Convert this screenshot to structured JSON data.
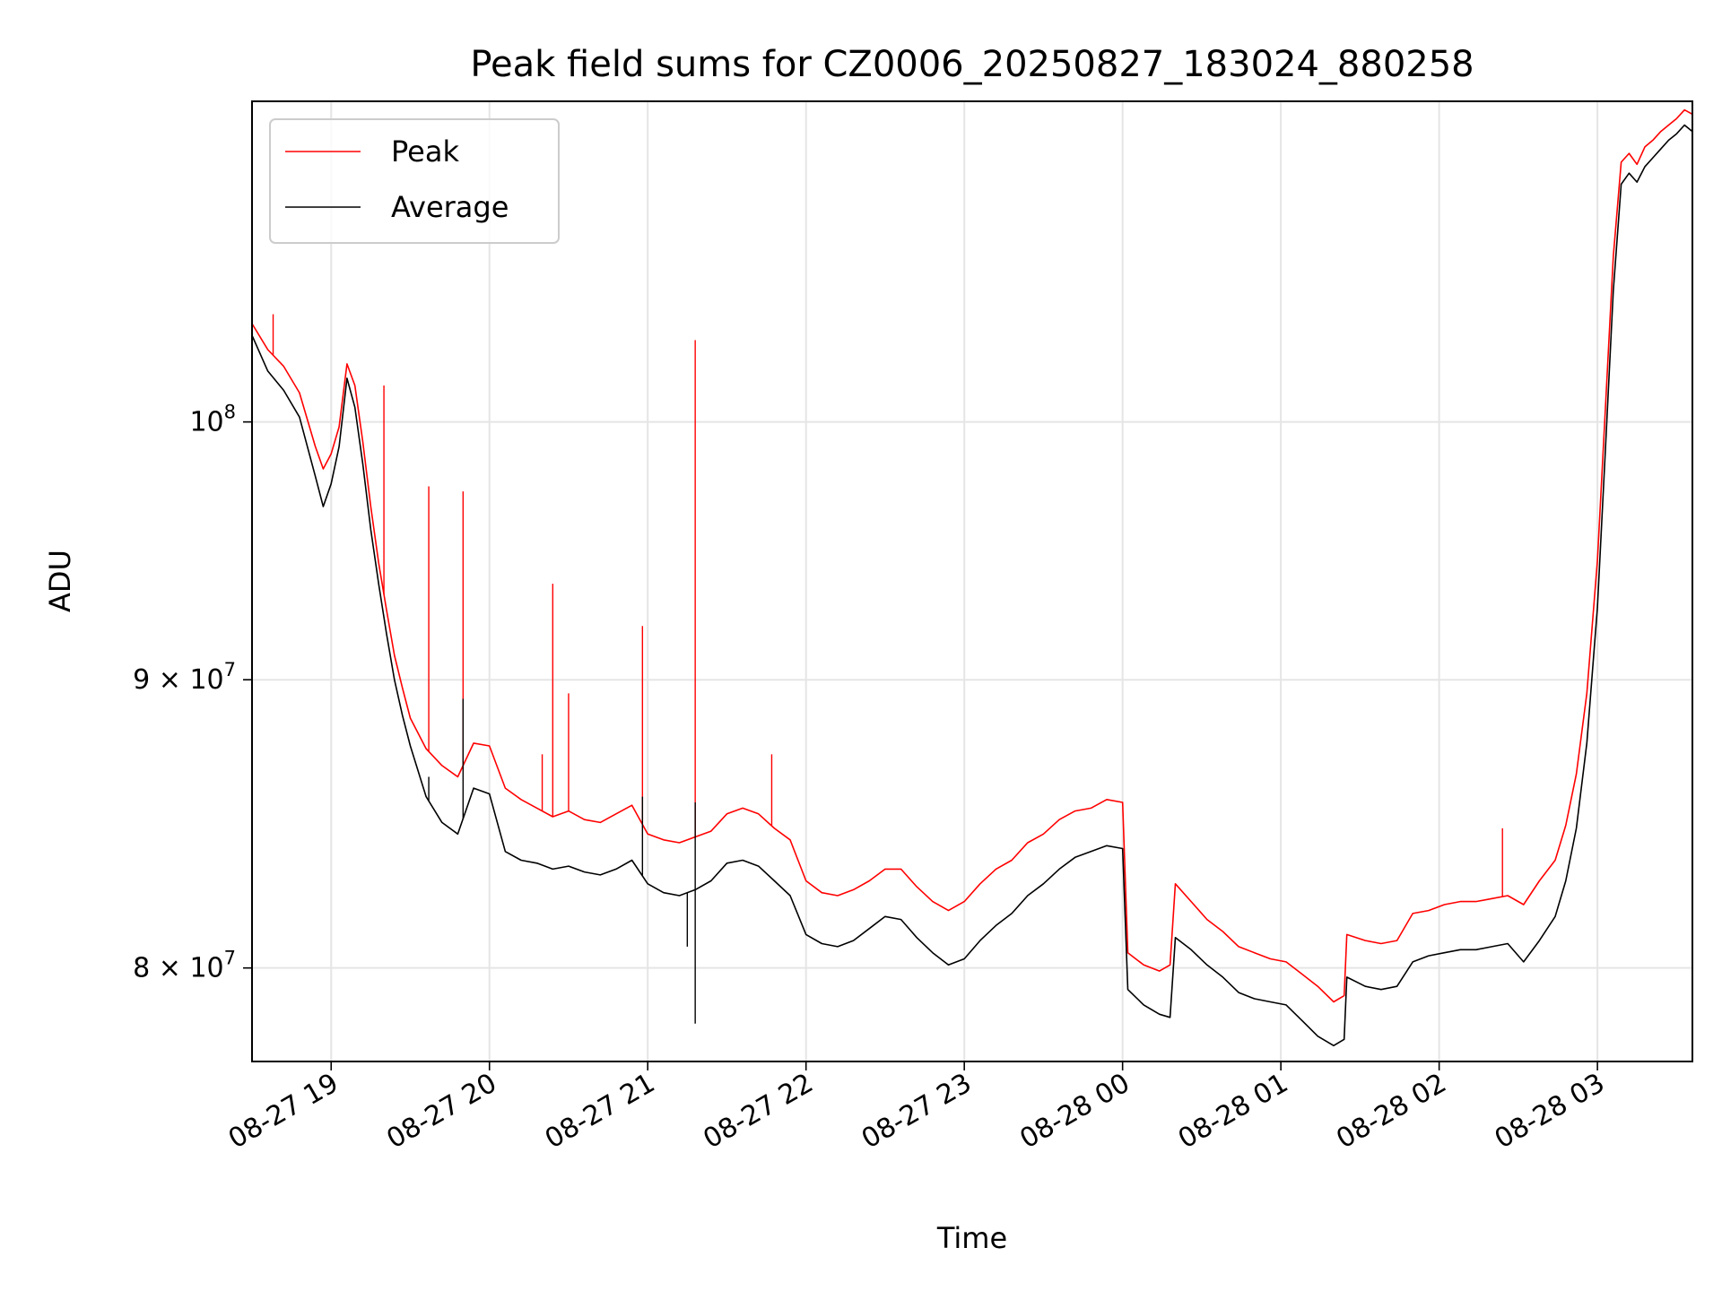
{
  "chart_data": {
    "type": "line",
    "title": "Peak field sums for CZ0006_20250827_183024_880258",
    "xlabel": "Time",
    "ylabel": "ADU",
    "y_scale": "log",
    "xlim": [
      "2025-08-27 18:30",
      "2025-08-28 03:36"
    ],
    "ylim": [
      77000000,
      114000000
    ],
    "x_ticks": [
      {
        "value": "2025-08-27 19:00",
        "label": "08-27 19"
      },
      {
        "value": "2025-08-27 20:00",
        "label": "08-27 20"
      },
      {
        "value": "2025-08-27 21:00",
        "label": "08-27 21"
      },
      {
        "value": "2025-08-27 22:00",
        "label": "08-27 22"
      },
      {
        "value": "2025-08-27 23:00",
        "label": "08-27 23"
      },
      {
        "value": "2025-08-28 00:00",
        "label": "08-28 00"
      },
      {
        "value": "2025-08-28 01:00",
        "label": "08-28 01"
      },
      {
        "value": "2025-08-28 02:00",
        "label": "08-28 02"
      },
      {
        "value": "2025-08-28 03:00",
        "label": "08-28 03"
      }
    ],
    "y_ticks": [
      {
        "value": 80000000,
        "base": "8",
        "exp": "7"
      },
      {
        "value": 90000000,
        "base": "9",
        "exp": "7"
      },
      {
        "value": 100000000,
        "base": "",
        "exp": "8"
      }
    ],
    "grid": true,
    "legend_position": "top-left",
    "series": [
      {
        "name": "Peak",
        "color": "#ff0000",
        "points": [
          [
            "2025-08-27 18:30",
            104100000
          ],
          [
            "2025-08-27 18:36",
            103000000
          ],
          [
            "2025-08-27 18:42",
            102300000
          ],
          [
            "2025-08-27 18:48",
            101200000
          ],
          [
            "2025-08-27 18:54",
            99000000
          ],
          [
            "2025-08-27 18:57",
            98100000
          ],
          [
            "2025-08-27 19:00",
            98700000
          ],
          [
            "2025-08-27 19:03",
            99800000
          ],
          [
            "2025-08-27 19:06",
            102400000
          ],
          [
            "2025-08-27 19:09",
            101500000
          ],
          [
            "2025-08-27 19:12",
            99200000
          ],
          [
            "2025-08-27 19:15",
            96600000
          ],
          [
            "2025-08-27 19:18",
            94400000
          ],
          [
            "2025-08-27 19:21",
            92600000
          ],
          [
            "2025-08-27 19:24",
            90900000
          ],
          [
            "2025-08-27 19:27",
            89700000
          ],
          [
            "2025-08-27 19:30",
            88600000
          ],
          [
            "2025-08-27 19:36",
            87500000
          ],
          [
            "2025-08-27 19:42",
            86900000
          ],
          [
            "2025-08-27 19:48",
            86500000
          ],
          [
            "2025-08-27 19:54",
            87700000
          ],
          [
            "2025-08-27 20:00",
            87600000
          ],
          [
            "2025-08-27 20:06",
            86100000
          ],
          [
            "2025-08-27 20:12",
            85700000
          ],
          [
            "2025-08-27 20:18",
            85400000
          ],
          [
            "2025-08-27 20:24",
            85100000
          ],
          [
            "2025-08-27 20:30",
            85300000
          ],
          [
            "2025-08-27 20:36",
            85000000
          ],
          [
            "2025-08-27 20:42",
            84900000
          ],
          [
            "2025-08-27 20:48",
            85200000
          ],
          [
            "2025-08-27 20:54",
            85500000
          ],
          [
            "2025-08-27 21:00",
            84500000
          ],
          [
            "2025-08-27 21:06",
            84300000
          ],
          [
            "2025-08-27 21:12",
            84200000
          ],
          [
            "2025-08-27 21:18",
            84400000
          ],
          [
            "2025-08-27 21:24",
            84600000
          ],
          [
            "2025-08-27 21:30",
            85200000
          ],
          [
            "2025-08-27 21:36",
            85400000
          ],
          [
            "2025-08-27 21:42",
            85200000
          ],
          [
            "2025-08-27 21:48",
            84700000
          ],
          [
            "2025-08-27 21:54",
            84300000
          ],
          [
            "2025-08-27 22:00",
            82900000
          ],
          [
            "2025-08-27 22:06",
            82500000
          ],
          [
            "2025-08-27 22:12",
            82400000
          ],
          [
            "2025-08-27 22:18",
            82600000
          ],
          [
            "2025-08-27 22:24",
            82900000
          ],
          [
            "2025-08-27 22:30",
            83300000
          ],
          [
            "2025-08-27 22:36",
            83300000
          ],
          [
            "2025-08-27 22:42",
            82700000
          ],
          [
            "2025-08-27 22:48",
            82200000
          ],
          [
            "2025-08-27 22:54",
            81900000
          ],
          [
            "2025-08-27 23:00",
            82200000
          ],
          [
            "2025-08-27 23:06",
            82800000
          ],
          [
            "2025-08-27 23:12",
            83300000
          ],
          [
            "2025-08-27 23:18",
            83600000
          ],
          [
            "2025-08-27 23:24",
            84200000
          ],
          [
            "2025-08-27 23:30",
            84500000
          ],
          [
            "2025-08-27 23:36",
            85000000
          ],
          [
            "2025-08-27 23:42",
            85300000
          ],
          [
            "2025-08-27 23:48",
            85400000
          ],
          [
            "2025-08-27 23:54",
            85700000
          ],
          [
            "2025-08-28 00:00",
            85600000
          ],
          [
            "2025-08-28 00:02",
            80500000
          ],
          [
            "2025-08-28 00:08",
            80100000
          ],
          [
            "2025-08-28 00:14",
            79900000
          ],
          [
            "2025-08-28 00:18",
            80100000
          ],
          [
            "2025-08-28 00:20",
            82800000
          ],
          [
            "2025-08-28 00:26",
            82200000
          ],
          [
            "2025-08-28 00:32",
            81600000
          ],
          [
            "2025-08-28 00:38",
            81200000
          ],
          [
            "2025-08-28 00:44",
            80700000
          ],
          [
            "2025-08-28 00:50",
            80500000
          ],
          [
            "2025-08-28 00:56",
            80300000
          ],
          [
            "2025-08-28 01:02",
            80200000
          ],
          [
            "2025-08-28 01:08",
            79800000
          ],
          [
            "2025-08-28 01:14",
            79400000
          ],
          [
            "2025-08-28 01:20",
            78900000
          ],
          [
            "2025-08-28 01:24",
            79100000
          ],
          [
            "2025-08-28 01:25",
            81100000
          ],
          [
            "2025-08-28 01:32",
            80900000
          ],
          [
            "2025-08-28 01:38",
            80800000
          ],
          [
            "2025-08-28 01:44",
            80900000
          ],
          [
            "2025-08-28 01:50",
            81800000
          ],
          [
            "2025-08-28 01:56",
            81900000
          ],
          [
            "2025-08-28 02:02",
            82100000
          ],
          [
            "2025-08-28 02:08",
            82200000
          ],
          [
            "2025-08-28 02:14",
            82200000
          ],
          [
            "2025-08-28 02:20",
            82300000
          ],
          [
            "2025-08-28 02:26",
            82400000
          ],
          [
            "2025-08-28 02:32",
            82100000
          ],
          [
            "2025-08-28 02:38",
            82900000
          ],
          [
            "2025-08-28 02:44",
            83600000
          ],
          [
            "2025-08-28 02:48",
            84800000
          ],
          [
            "2025-08-28 02:52",
            86600000
          ],
          [
            "2025-08-28 02:56",
            89500000
          ],
          [
            "2025-08-28 03:00",
            94500000
          ],
          [
            "2025-08-28 03:03",
            100500000
          ],
          [
            "2025-08-28 03:06",
            107000000
          ],
          [
            "2025-08-28 03:09",
            111200000
          ],
          [
            "2025-08-28 03:12",
            111600000
          ],
          [
            "2025-08-28 03:15",
            111100000
          ],
          [
            "2025-08-28 03:18",
            111900000
          ],
          [
            "2025-08-28 03:21",
            112200000
          ],
          [
            "2025-08-28 03:24",
            112600000
          ],
          [
            "2025-08-28 03:27",
            112900000
          ],
          [
            "2025-08-28 03:30",
            113200000
          ],
          [
            "2025-08-28 03:33",
            113600000
          ],
          [
            "2025-08-28 03:36",
            113400000
          ]
        ],
        "spikes": [
          [
            "2025-08-27 18:38",
            104500000
          ],
          [
            "2025-08-27 19:20",
            101500000
          ],
          [
            "2025-08-27 19:37",
            97400000
          ],
          [
            "2025-08-27 19:50",
            97200000
          ],
          [
            "2025-08-27 20:20",
            87300000
          ],
          [
            "2025-08-27 20:24",
            93600000
          ],
          [
            "2025-08-27 20:30",
            89500000
          ],
          [
            "2025-08-27 20:58",
            92000000
          ],
          [
            "2025-08-27 21:18",
            103400000
          ],
          [
            "2025-08-27 21:47",
            87300000
          ],
          [
            "2025-08-28 02:24",
            84700000
          ]
        ]
      },
      {
        "name": "Average",
        "color": "#000000",
        "points": [
          [
            "2025-08-27 18:30",
            103600000
          ],
          [
            "2025-08-27 18:36",
            102100000
          ],
          [
            "2025-08-27 18:42",
            101300000
          ],
          [
            "2025-08-27 18:48",
            100200000
          ],
          [
            "2025-08-27 18:54",
            97800000
          ],
          [
            "2025-08-27 18:57",
            96600000
          ],
          [
            "2025-08-27 19:00",
            97500000
          ],
          [
            "2025-08-27 19:03",
            99000000
          ],
          [
            "2025-08-27 19:06",
            101800000
          ],
          [
            "2025-08-27 19:09",
            100600000
          ],
          [
            "2025-08-27 19:12",
            98300000
          ],
          [
            "2025-08-27 19:15",
            95700000
          ],
          [
            "2025-08-27 19:18",
            93600000
          ],
          [
            "2025-08-27 19:21",
            91700000
          ],
          [
            "2025-08-27 19:24",
            90000000
          ],
          [
            "2025-08-27 19:27",
            88700000
          ],
          [
            "2025-08-27 19:30",
            87600000
          ],
          [
            "2025-08-27 19:36",
            85800000
          ],
          [
            "2025-08-27 19:42",
            84900000
          ],
          [
            "2025-08-27 19:48",
            84500000
          ],
          [
            "2025-08-27 19:54",
            86100000
          ],
          [
            "2025-08-27 20:00",
            85900000
          ],
          [
            "2025-08-27 20:06",
            83900000
          ],
          [
            "2025-08-27 20:12",
            83600000
          ],
          [
            "2025-08-27 20:18",
            83500000
          ],
          [
            "2025-08-27 20:24",
            83300000
          ],
          [
            "2025-08-27 20:30",
            83400000
          ],
          [
            "2025-08-27 20:36",
            83200000
          ],
          [
            "2025-08-27 20:42",
            83100000
          ],
          [
            "2025-08-27 20:48",
            83300000
          ],
          [
            "2025-08-27 20:54",
            83600000
          ],
          [
            "2025-08-27 21:00",
            82800000
          ],
          [
            "2025-08-27 21:06",
            82500000
          ],
          [
            "2025-08-27 21:12",
            82400000
          ],
          [
            "2025-08-27 21:18",
            82600000
          ],
          [
            "2025-08-27 21:24",
            82900000
          ],
          [
            "2025-08-27 21:30",
            83500000
          ],
          [
            "2025-08-27 21:36",
            83600000
          ],
          [
            "2025-08-27 21:42",
            83400000
          ],
          [
            "2025-08-27 21:48",
            82900000
          ],
          [
            "2025-08-27 21:54",
            82400000
          ],
          [
            "2025-08-27 22:00",
            81100000
          ],
          [
            "2025-08-27 22:06",
            80800000
          ],
          [
            "2025-08-27 22:12",
            80700000
          ],
          [
            "2025-08-27 22:18",
            80900000
          ],
          [
            "2025-08-27 22:24",
            81300000
          ],
          [
            "2025-08-27 22:30",
            81700000
          ],
          [
            "2025-08-27 22:36",
            81600000
          ],
          [
            "2025-08-27 22:42",
            81000000
          ],
          [
            "2025-08-27 22:48",
            80500000
          ],
          [
            "2025-08-27 22:54",
            80100000
          ],
          [
            "2025-08-27 23:00",
            80300000
          ],
          [
            "2025-08-27 23:06",
            80900000
          ],
          [
            "2025-08-27 23:12",
            81400000
          ],
          [
            "2025-08-27 23:18",
            81800000
          ],
          [
            "2025-08-27 23:24",
            82400000
          ],
          [
            "2025-08-27 23:30",
            82800000
          ],
          [
            "2025-08-27 23:36",
            83300000
          ],
          [
            "2025-08-27 23:42",
            83700000
          ],
          [
            "2025-08-27 23:48",
            83900000
          ],
          [
            "2025-08-27 23:54",
            84100000
          ],
          [
            "2025-08-28 00:00",
            84000000
          ],
          [
            "2025-08-28 00:02",
            79300000
          ],
          [
            "2025-08-28 00:08",
            78800000
          ],
          [
            "2025-08-28 00:14",
            78500000
          ],
          [
            "2025-08-28 00:18",
            78400000
          ],
          [
            "2025-08-28 00:20",
            81000000
          ],
          [
            "2025-08-28 00:26",
            80600000
          ],
          [
            "2025-08-28 00:32",
            80100000
          ],
          [
            "2025-08-28 00:38",
            79700000
          ],
          [
            "2025-08-28 00:44",
            79200000
          ],
          [
            "2025-08-28 00:50",
            79000000
          ],
          [
            "2025-08-28 00:56",
            78900000
          ],
          [
            "2025-08-28 01:02",
            78800000
          ],
          [
            "2025-08-28 01:08",
            78300000
          ],
          [
            "2025-08-28 01:14",
            77800000
          ],
          [
            "2025-08-28 01:20",
            77500000
          ],
          [
            "2025-08-28 01:24",
            77700000
          ],
          [
            "2025-08-28 01:25",
            79700000
          ],
          [
            "2025-08-28 01:32",
            79400000
          ],
          [
            "2025-08-28 01:38",
            79300000
          ],
          [
            "2025-08-28 01:44",
            79400000
          ],
          [
            "2025-08-28 01:50",
            80200000
          ],
          [
            "2025-08-28 01:56",
            80400000
          ],
          [
            "2025-08-28 02:02",
            80500000
          ],
          [
            "2025-08-28 02:08",
            80600000
          ],
          [
            "2025-08-28 02:14",
            80600000
          ],
          [
            "2025-08-28 02:20",
            80700000
          ],
          [
            "2025-08-28 02:26",
            80800000
          ],
          [
            "2025-08-28 02:32",
            80200000
          ],
          [
            "2025-08-28 02:38",
            80900000
          ],
          [
            "2025-08-28 02:44",
            81700000
          ],
          [
            "2025-08-28 02:48",
            82900000
          ],
          [
            "2025-08-28 02:52",
            84700000
          ],
          [
            "2025-08-28 02:56",
            87700000
          ],
          [
            "2025-08-28 03:00",
            92700000
          ],
          [
            "2025-08-28 03:03",
            98800000
          ],
          [
            "2025-08-28 03:06",
            105500000
          ],
          [
            "2025-08-28 03:09",
            110200000
          ],
          [
            "2025-08-28 03:12",
            110700000
          ],
          [
            "2025-08-28 03:15",
            110300000
          ],
          [
            "2025-08-28 03:18",
            111000000
          ],
          [
            "2025-08-28 03:21",
            111400000
          ],
          [
            "2025-08-28 03:24",
            111800000
          ],
          [
            "2025-08-28 03:27",
            112200000
          ],
          [
            "2025-08-28 03:30",
            112500000
          ],
          [
            "2025-08-28 03:33",
            112900000
          ],
          [
            "2025-08-28 03:36",
            112600000
          ]
        ],
        "spikes": [
          [
            "2025-08-27 19:37",
            86500000
          ],
          [
            "2025-08-27 19:50",
            89300000
          ],
          [
            "2025-08-27 20:58",
            85800000
          ],
          [
            "2025-08-27 21:15",
            80700000
          ],
          [
            "2025-08-27 21:18",
            85600000
          ],
          [
            "2025-08-27 21:18",
            78200000
          ]
        ]
      }
    ]
  }
}
